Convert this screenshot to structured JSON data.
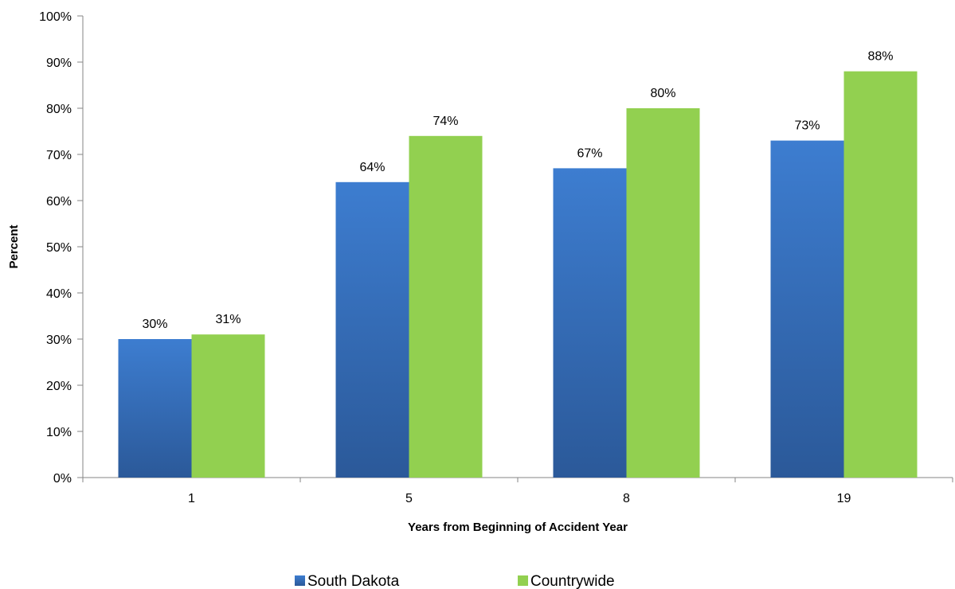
{
  "chart_data": {
    "type": "bar",
    "title": "",
    "xlabel": "Years from Beginning of Accident Year",
    "ylabel": "Percent",
    "categories": [
      "1",
      "5",
      "8",
      "19"
    ],
    "series": [
      {
        "name": "South Dakota",
        "values": [
          30,
          64,
          67,
          73
        ],
        "labels": [
          "30%",
          "64%",
          "67%",
          "73%"
        ],
        "color": "#3a78c9"
      },
      {
        "name": "Countrywide",
        "values": [
          31,
          74,
          80,
          88
        ],
        "labels": [
          "31%",
          "74%",
          "80%",
          "88%"
        ],
        "color": "#92d050"
      }
    ],
    "ylim": [
      0,
      100
    ],
    "yticks": [
      0,
      10,
      20,
      30,
      40,
      50,
      60,
      70,
      80,
      90,
      100
    ],
    "ytick_labels": [
      "0%",
      "10%",
      "20%",
      "30%",
      "40%",
      "50%",
      "60%",
      "70%",
      "80%",
      "90%",
      "100%"
    ],
    "grid": false,
    "legend_position": "bottom"
  }
}
